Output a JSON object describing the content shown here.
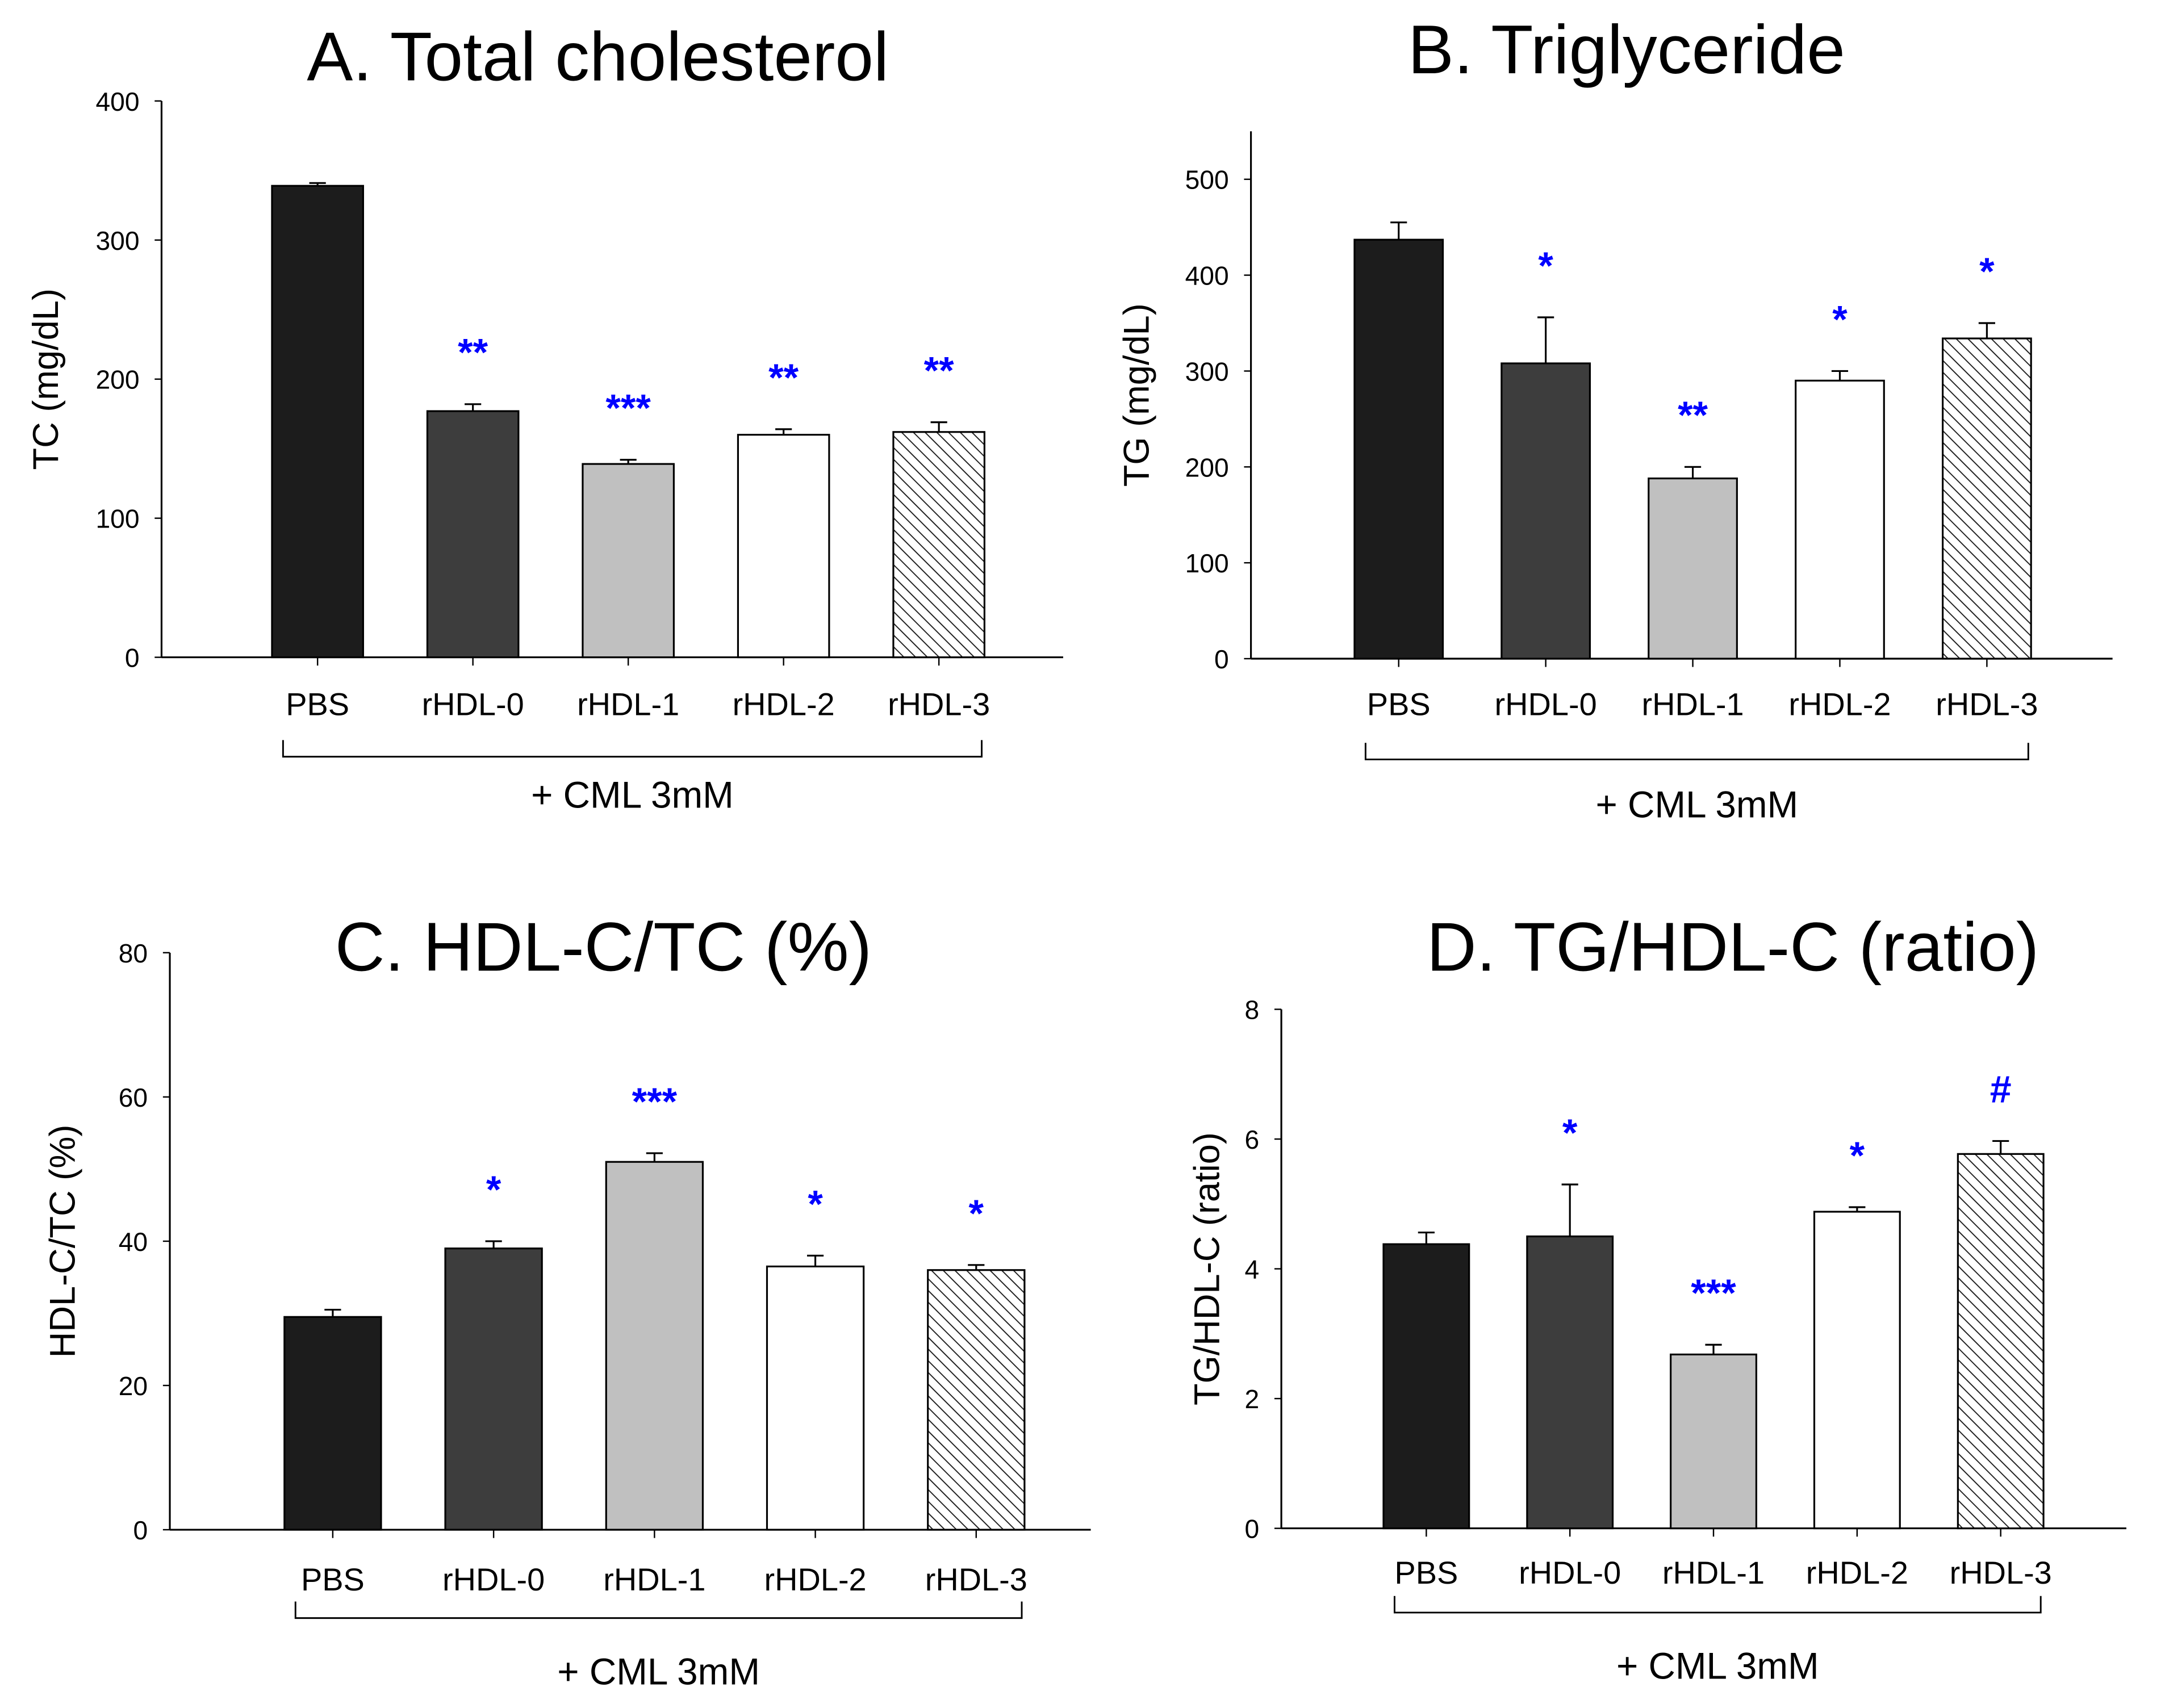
{
  "chart_data": [
    {
      "type": "bar",
      "title": "A. Total cholesterol",
      "ylabel": "TC (mg/dL)",
      "xlabel": "+ CML 3mM",
      "categories": [
        "PBS",
        "rHDL-0",
        "rHDL-1",
        "rHDL-2",
        "rHDL-3"
      ],
      "values": [
        339,
        177,
        139,
        160,
        162
      ],
      "errors": [
        2,
        5,
        3,
        4,
        7
      ],
      "significance": [
        "",
        "**",
        "***",
        "**",
        "**"
      ],
      "ylim": [
        0,
        400
      ],
      "yticks": [
        0,
        100,
        200,
        300,
        400
      ]
    },
    {
      "type": "bar",
      "title": "B. Triglyceride",
      "ylabel": "TG (mg/dL)",
      "xlabel": "+ CML 3mM",
      "categories": [
        "PBS",
        "rHDL-0",
        "rHDL-1",
        "rHDL-2",
        "rHDL-3"
      ],
      "values": [
        437,
        308,
        188,
        290,
        334
      ],
      "errors": [
        18,
        48,
        12,
        10,
        16
      ],
      "significance": [
        "",
        "*",
        "**",
        "*",
        "*"
      ],
      "ylim": [
        0,
        550
      ],
      "yticks": [
        0,
        100,
        200,
        300,
        400,
        500
      ]
    },
    {
      "type": "bar",
      "title": "C. HDL-C/TC (%)",
      "ylabel": "HDL-C/TC (%)",
      "xlabel": "+ CML 3mM",
      "categories": [
        "PBS",
        "rHDL-0",
        "rHDL-1",
        "rHDL-2",
        "rHDL-3"
      ],
      "values": [
        29.5,
        39,
        51,
        36.5,
        36
      ],
      "errors": [
        1,
        1,
        1.2,
        1.5,
        0.7
      ],
      "significance": [
        "",
        "*",
        "***",
        "*",
        "*"
      ],
      "ylim": [
        0,
        80
      ],
      "yticks": [
        0,
        20,
        40,
        60,
        80
      ]
    },
    {
      "type": "bar",
      "title": "D. TG/HDL-C (ratio)",
      "ylabel": "TG/HDL-C (ratio)",
      "xlabel": "+ CML 3mM",
      "categories": [
        "PBS",
        "rHDL-0",
        "rHDL-1",
        "rHDL-2",
        "rHDL-3"
      ],
      "values": [
        4.38,
        4.5,
        2.68,
        4.88,
        5.77
      ],
      "errors": [
        0.18,
        0.8,
        0.15,
        0.07,
        0.2
      ],
      "significance": [
        "",
        "*",
        "***",
        "*",
        "#"
      ],
      "ylim": [
        0,
        8
      ],
      "yticks": [
        0,
        2,
        4,
        6,
        8
      ]
    }
  ],
  "colors": {
    "bar_fills": [
      "#1c1c1c",
      "#3d3d3d",
      "#c0c0c0",
      "#ffffff",
      "hatch"
    ],
    "significance": "#0000ff"
  }
}
